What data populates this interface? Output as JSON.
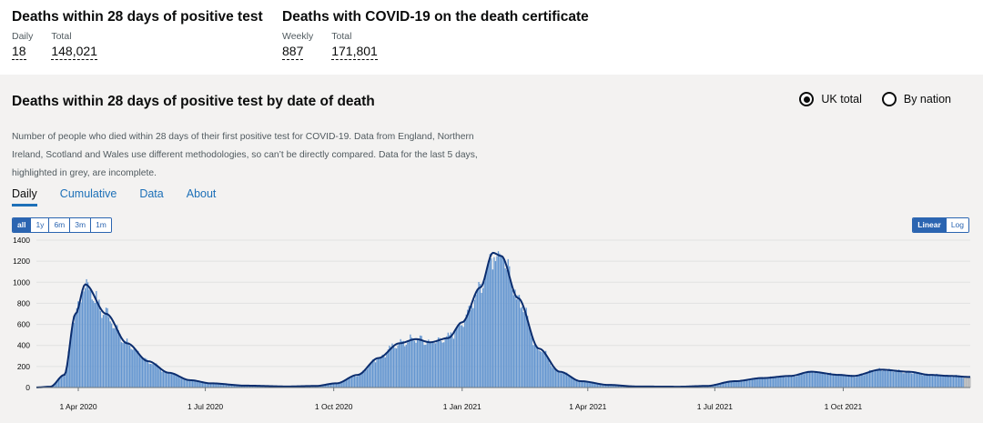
{
  "headlines": [
    {
      "title": "Deaths within 28 days of positive test",
      "metrics": [
        {
          "label": "Daily",
          "value": "18"
        },
        {
          "label": "Total",
          "value": "148,021"
        }
      ]
    },
    {
      "title": "Deaths with COVID-19 on the death certificate",
      "metrics": [
        {
          "label": "Weekly",
          "value": "887"
        },
        {
          "label": "Total",
          "value": "171,801"
        }
      ]
    }
  ],
  "card": {
    "title": "Deaths within 28 days of positive test by date of death",
    "radios": [
      {
        "label": "UK total",
        "checked": true
      },
      {
        "label": "By nation",
        "checked": false
      }
    ],
    "description": "Number of people who died within 28 days of their first positive test for COVID-19. Data from England, Northern Ireland, Scotland and Wales use different methodologies, so can’t be directly compared. Data for the last 5 days, highlighted in grey, are incomplete.",
    "tabs": [
      "Daily",
      "Cumulative",
      "Data",
      "About"
    ],
    "active_tab": "Daily",
    "range_buttons": [
      "all",
      "1y",
      "6m",
      "3m",
      "1m"
    ],
    "active_range": "all",
    "scale_buttons": [
      "Linear",
      "Log"
    ],
    "active_scale": "Linear"
  },
  "chart_data": {
    "type": "bar",
    "title": "Deaths within 28 days of positive test by date of death",
    "ylim": [
      0,
      1400
    ],
    "yticks": [
      0,
      200,
      400,
      600,
      800,
      1000,
      1200,
      1400
    ],
    "xticks": [
      {
        "label": "1 Apr 2020",
        "day": 30
      },
      {
        "label": "1 Jul 2020",
        "day": 121
      },
      {
        "label": "1 Oct 2020",
        "day": 213
      },
      {
        "label": "1 Jan 2021",
        "day": 305
      },
      {
        "label": "1 Apr 2021",
        "day": 395
      },
      {
        "label": "1 Jul 2021",
        "day": 486
      },
      {
        "label": "1 Oct 2021",
        "day": 578
      }
    ],
    "x_days": 670,
    "incomplete_days": 5,
    "series": [
      {
        "name": "Daily deaths (bars)",
        "color": "#6496d0"
      },
      {
        "name": "Rolling 7-day average (line)",
        "color": "#0b2d6e"
      }
    ],
    "profile": [
      [
        0,
        1
      ],
      [
        10,
        8
      ],
      [
        20,
        120
      ],
      [
        28,
        700
      ],
      [
        35,
        980
      ],
      [
        50,
        700
      ],
      [
        65,
        420
      ],
      [
        80,
        250
      ],
      [
        95,
        140
      ],
      [
        110,
        70
      ],
      [
        125,
        40
      ],
      [
        150,
        18
      ],
      [
        180,
        10
      ],
      [
        200,
        15
      ],
      [
        215,
        40
      ],
      [
        230,
        120
      ],
      [
        245,
        280
      ],
      [
        260,
        420
      ],
      [
        272,
        460
      ],
      [
        282,
        430
      ],
      [
        295,
        470
      ],
      [
        305,
        620
      ],
      [
        318,
        950
      ],
      [
        327,
        1280
      ],
      [
        333,
        1250
      ],
      [
        345,
        850
      ],
      [
        360,
        370
      ],
      [
        375,
        150
      ],
      [
        390,
        60
      ],
      [
        410,
        25
      ],
      [
        430,
        10
      ],
      [
        460,
        8
      ],
      [
        480,
        15
      ],
      [
        500,
        60
      ],
      [
        520,
        90
      ],
      [
        540,
        110
      ],
      [
        555,
        150
      ],
      [
        575,
        120
      ],
      [
        585,
        110
      ],
      [
        605,
        170
      ],
      [
        625,
        150
      ],
      [
        640,
        120
      ],
      [
        655,
        110
      ],
      [
        669,
        100
      ]
    ]
  }
}
